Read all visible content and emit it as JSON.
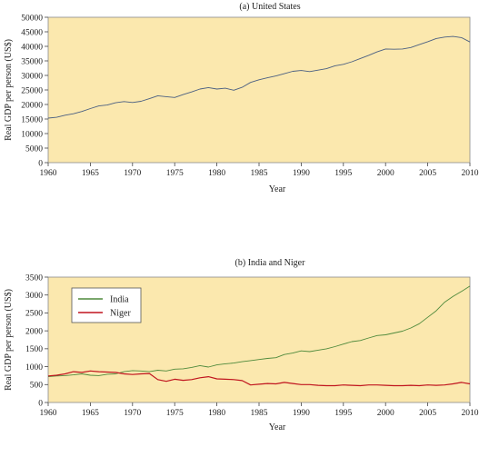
{
  "chart_data": [
    {
      "type": "line",
      "title": "(a) United States",
      "xlabel": "Year",
      "ylabel": "Real GDP  per person (US$)",
      "xlim": [
        1960,
        2010
      ],
      "ylim": [
        0,
        50000
      ],
      "x_ticks": [
        1960,
        1965,
        1970,
        1975,
        1980,
        1985,
        1990,
        1995,
        2000,
        2005,
        2010
      ],
      "y_ticks": [
        0,
        5000,
        10000,
        15000,
        20000,
        25000,
        30000,
        35000,
        40000,
        45000,
        50000
      ],
      "grid": false,
      "background": "#FBE8AE",
      "series": [
        {
          "color": "#4A5F82",
          "x": [
            1960,
            1961,
            1962,
            1963,
            1964,
            1965,
            1966,
            1967,
            1968,
            1969,
            1970,
            1971,
            1972,
            1973,
            1974,
            1975,
            1976,
            1977,
            1978,
            1979,
            1980,
            1981,
            1982,
            1983,
            1984,
            1985,
            1986,
            1987,
            1988,
            1989,
            1990,
            1991,
            1992,
            1993,
            1994,
            1995,
            1996,
            1997,
            1998,
            1999,
            2000,
            2001,
            2002,
            2003,
            2004,
            2005,
            2006,
            2007,
            2008,
            2009,
            2010
          ],
          "values": [
            15300,
            15600,
            16300,
            16800,
            17600,
            18600,
            19500,
            19800,
            20600,
            21000,
            20700,
            21100,
            22000,
            23000,
            22700,
            22400,
            23400,
            24300,
            25300,
            25800,
            25300,
            25600,
            24900,
            25900,
            27600,
            28500,
            29200,
            29800,
            30600,
            31400,
            31700,
            31300,
            31800,
            32300,
            33300,
            33800,
            34700,
            35800,
            36900,
            38100,
            39100,
            39000,
            39100,
            39600,
            40600,
            41600,
            42700,
            43200,
            43400,
            43000,
            41500
          ]
        }
      ]
    },
    {
      "type": "line",
      "title": "(b) India and Niger",
      "xlabel": "Year",
      "ylabel": "Real GDP  per person (US$)",
      "xlim": [
        1960,
        2010
      ],
      "ylim": [
        0,
        3500
      ],
      "x_ticks": [
        1960,
        1965,
        1970,
        1975,
        1980,
        1985,
        1990,
        1995,
        2000,
        2005,
        2010
      ],
      "y_ticks": [
        0,
        500,
        1000,
        1500,
        2000,
        2500,
        3000,
        3500
      ],
      "grid": false,
      "background": "#FBE8AE",
      "legend_position": "top-left",
      "series": [
        {
          "name": "India",
          "color": "#4F8A3C",
          "x": [
            1960,
            1961,
            1962,
            1963,
            1964,
            1965,
            1966,
            1967,
            1968,
            1969,
            1970,
            1971,
            1972,
            1973,
            1974,
            1975,
            1976,
            1977,
            1978,
            1979,
            1980,
            1981,
            1982,
            1983,
            1984,
            1985,
            1986,
            1987,
            1988,
            1989,
            1990,
            1991,
            1992,
            1993,
            1994,
            1995,
            1996,
            1997,
            1998,
            1999,
            2000,
            2001,
            2002,
            2003,
            2004,
            2005,
            2006,
            2007,
            2008,
            2009,
            2010
          ],
          "values": [
            720,
            740,
            750,
            770,
            800,
            760,
            750,
            790,
            800,
            860,
            890,
            880,
            860,
            900,
            880,
            930,
            940,
            980,
            1030,
            990,
            1050,
            1080,
            1100,
            1140,
            1170,
            1200,
            1230,
            1250,
            1340,
            1380,
            1440,
            1420,
            1460,
            1500,
            1560,
            1630,
            1700,
            1730,
            1800,
            1870,
            1890,
            1940,
            1990,
            2080,
            2200,
            2380,
            2560,
            2800,
            2960,
            3100,
            3250
          ]
        }
      ]
    }
  ],
  "legend": {
    "india_label": "India",
    "niger_label": "Niger"
  }
}
